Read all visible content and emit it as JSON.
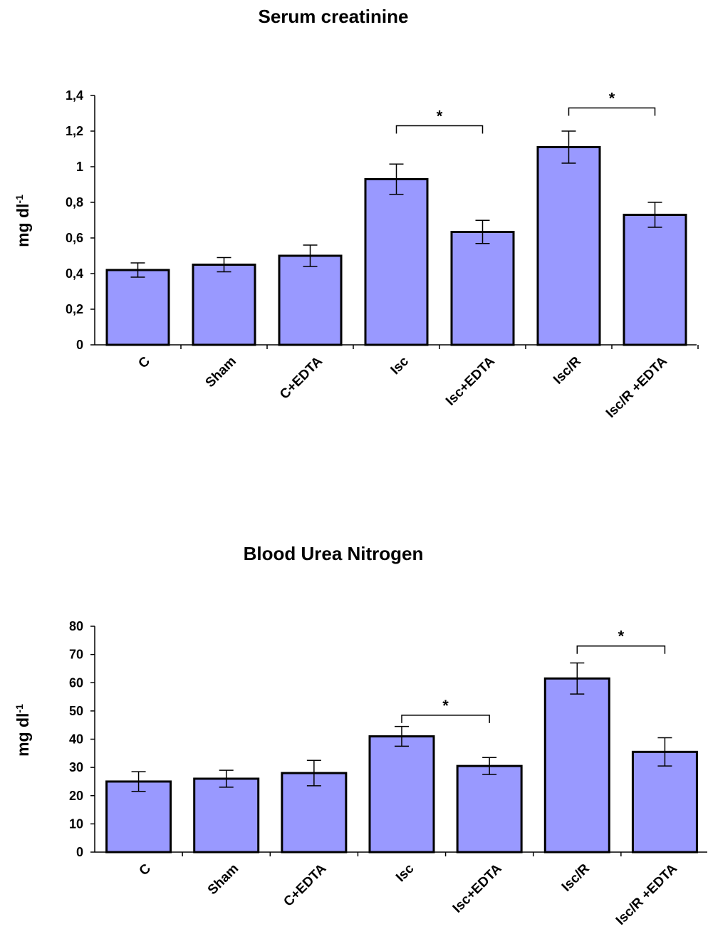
{
  "bar_color": "#9999ff",
  "chart_data": [
    {
      "type": "bar",
      "title": "Serum creatinine",
      "ylabel": "mg dl",
      "ylabel_sup": "-1",
      "ylim": [
        0,
        1.4
      ],
      "ytick_values": [
        0,
        0.2,
        0.4,
        0.6,
        0.8,
        1,
        1.2,
        1.4
      ],
      "ytick_labels": [
        "0",
        "0,2",
        "0,4",
        "0,6",
        "0,8",
        "1",
        "1,2",
        "1,4"
      ],
      "categories": [
        "C",
        "Sham",
        "C+EDTA",
        "Isc",
        "Isc+EDTA",
        "Isc/R",
        "Isc/R +EDTA"
      ],
      "values": [
        0.42,
        0.45,
        0.5,
        0.93,
        0.634,
        1.11,
        0.73
      ],
      "errors": [
        0.04,
        0.04,
        0.06,
        0.085,
        0.065,
        0.09,
        0.07
      ],
      "significance": [
        {
          "from": 3,
          "to": 4,
          "y": 1.23,
          "label": "*"
        },
        {
          "from": 5,
          "to": 6,
          "y": 1.33,
          "label": "*"
        }
      ],
      "grid": false
    },
    {
      "type": "bar",
      "title": "Blood Urea Nitrogen",
      "ylabel": "mg dl",
      "ylabel_sup": "-1",
      "ylim": [
        0,
        80
      ],
      "ytick_values": [
        0,
        10,
        20,
        30,
        40,
        50,
        60,
        70,
        80
      ],
      "ytick_labels": [
        "0",
        "10",
        "20",
        "30",
        "40",
        "50",
        "60",
        "70",
        "80"
      ],
      "categories": [
        "C",
        "Sham",
        "C+EDTA",
        "Isc",
        "Isc+EDTA",
        "Isc/R",
        "Isc/R +EDTA"
      ],
      "values": [
        25,
        26,
        28,
        41,
        30.5,
        61.5,
        35.5
      ],
      "errors": [
        3.5,
        3,
        4.5,
        3.5,
        3,
        5.5,
        5
      ],
      "significance": [
        {
          "from": 3,
          "to": 4,
          "y": 48.5,
          "label": "*"
        },
        {
          "from": 5,
          "to": 6,
          "y": 73,
          "label": "*"
        }
      ],
      "grid": false
    }
  ]
}
